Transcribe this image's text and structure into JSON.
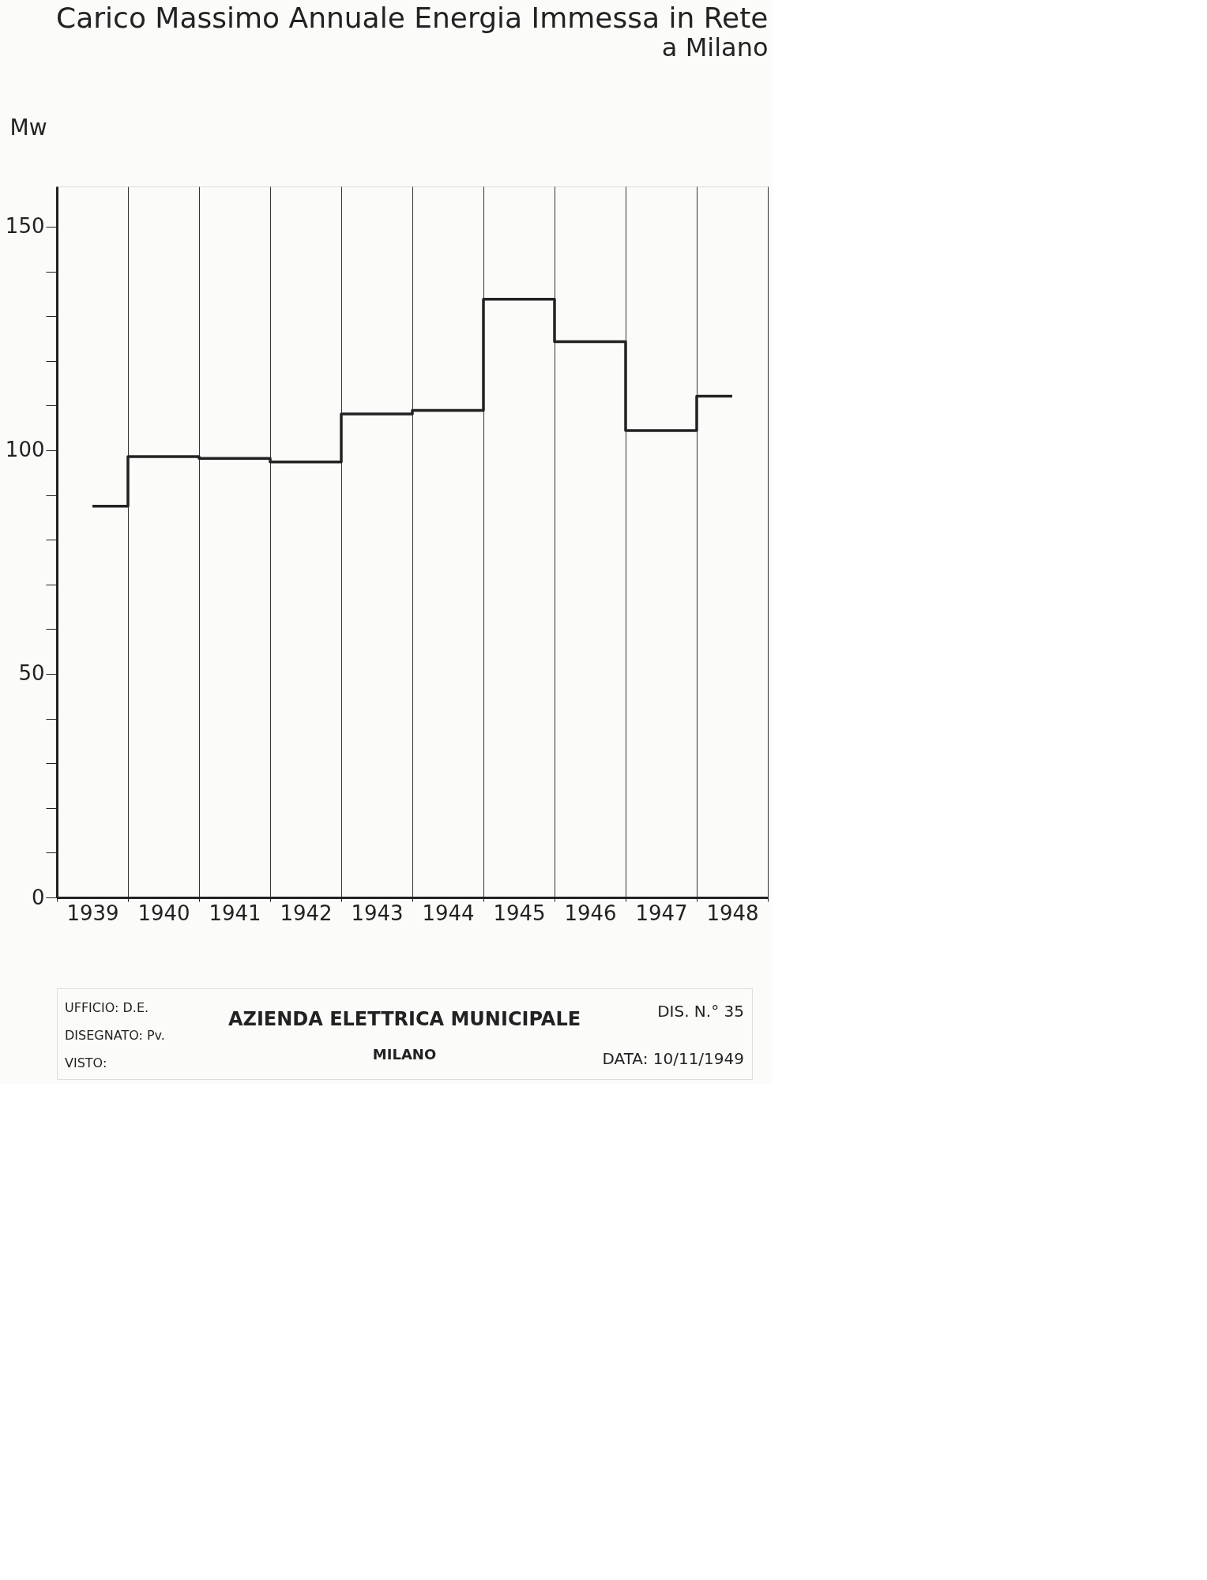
{
  "chart_data": {
    "type": "step",
    "title": "Carico Massimo Annuale Energia Immessa in Rete",
    "subtitle": "a Milano",
    "ylabel": "Mw",
    "categories": [
      "1939",
      "1940",
      "1941",
      "1942",
      "1943",
      "1944",
      "1945",
      "1946",
      "1947",
      "1948"
    ],
    "series": [
      {
        "color": "#222222",
        "values": [
          87.5,
          98.6,
          98.2,
          97.4,
          108.1,
          108.9,
          133.8,
          124.3,
          104.4,
          112.1
        ]
      }
    ],
    "ylim": [
      0,
      159
    ],
    "yticks": [
      0,
      {
        "value": 10,
        "label": null
      },
      {
        "value": 20,
        "label": null
      },
      {
        "value": 30,
        "label": null
      },
      {
        "value": 40,
        "label": null
      },
      50,
      {
        "value": 60,
        "label": null
      },
      {
        "value": 70,
        "label": null
      },
      {
        "value": 80,
        "label": null
      },
      {
        "value": 90,
        "label": null
      },
      100,
      {
        "value": 110,
        "label": null
      },
      {
        "value": 120,
        "label": null
      },
      {
        "value": 130,
        "label": null
      },
      {
        "value": 140,
        "label": null
      },
      150
    ],
    "grid": "x",
    "marker": "none",
    "line_style": "solid",
    "annotations": [
      "UFFICIO: D.E.",
      "DISEGNATO: Pv.",
      "VISTO:",
      "AZIENDA ELETTRICA MUNICIPALE",
      "MILANO",
      "DIS. N.° 35",
      "DATA: 10/11/1949"
    ]
  }
}
